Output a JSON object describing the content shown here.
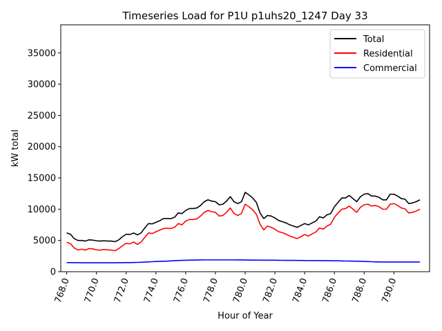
{
  "chart_data": {
    "type": "line",
    "title": "Timeseries Load for P1U p1uhs20_1247  Day 33",
    "xlabel": "Hour of Year",
    "ylabel": "kW total",
    "xlim": [
      767.6,
      792.4
    ],
    "ylim": [
      0,
      39500
    ],
    "xticks": [
      768.0,
      770.0,
      772.0,
      774.0,
      776.0,
      778.0,
      780.0,
      782.0,
      784.0,
      786.0,
      788.0,
      790.0
    ],
    "xtick_labels": [
      "768.0",
      "770.0",
      "772.0",
      "774.0",
      "776.0",
      "778.0",
      "780.0",
      "782.0",
      "784.0",
      "786.0",
      "788.0",
      "790.0"
    ],
    "yticks": [
      0,
      5000,
      10000,
      15000,
      20000,
      25000,
      30000,
      35000
    ],
    "ytick_labels": [
      "0",
      "5000",
      "10000",
      "15000",
      "20000",
      "25000",
      "30000",
      "35000"
    ],
    "legend_position": "top-right",
    "grid": false,
    "x": [
      768.0,
      768.25,
      768.5,
      768.75,
      769.0,
      769.25,
      769.5,
      769.75,
      770.0,
      770.25,
      770.5,
      770.75,
      771.0,
      771.25,
      771.5,
      771.75,
      772.0,
      772.25,
      772.5,
      772.75,
      773.0,
      773.25,
      773.5,
      773.75,
      774.0,
      774.25,
      774.5,
      774.75,
      775.0,
      775.25,
      775.5,
      775.75,
      776.0,
      776.25,
      776.5,
      776.75,
      777.0,
      777.25,
      777.5,
      777.75,
      778.0,
      778.25,
      778.5,
      778.75,
      779.0,
      779.25,
      779.5,
      779.75,
      780.0,
      780.25,
      780.5,
      780.75,
      781.0,
      781.25,
      781.5,
      781.75,
      782.0,
      782.25,
      782.5,
      782.75,
      783.0,
      783.25,
      783.5,
      783.75,
      784.0,
      784.25,
      784.5,
      784.75,
      785.0,
      785.25,
      785.5,
      785.75,
      786.0,
      786.25,
      786.5,
      786.75,
      787.0,
      787.25,
      787.5,
      787.75,
      788.0,
      788.25,
      788.5,
      788.75,
      789.0,
      789.25,
      789.5,
      789.75,
      790.0,
      790.25,
      790.5,
      790.75,
      791.0,
      791.25,
      791.5,
      791.75
    ],
    "series": [
      {
        "name": "Total",
        "color": "#000000",
        "values": [
          6200,
          6000,
          5300,
          5000,
          5000,
          4900,
          5100,
          5050,
          4950,
          4900,
          4950,
          4900,
          4900,
          4800,
          5100,
          5600,
          6000,
          5950,
          6200,
          5900,
          6200,
          7000,
          7700,
          7650,
          7900,
          8150,
          8500,
          8500,
          8500,
          8700,
          9400,
          9300,
          9800,
          10100,
          10100,
          10200,
          10600,
          11200,
          11500,
          11300,
          11200,
          10700,
          10800,
          11300,
          12000,
          11200,
          10900,
          11200,
          12700,
          12300,
          11800,
          11100,
          9400,
          8500,
          9000,
          8900,
          8600,
          8200,
          8000,
          7800,
          7500,
          7300,
          7100,
          7400,
          7700,
          7500,
          7800,
          8100,
          8800,
          8600,
          9100,
          9300,
          10400,
          11100,
          11800,
          11800,
          12200,
          11700,
          11200,
          12000,
          12400,
          12500,
          12100,
          12100,
          11900,
          11500,
          11500,
          12400,
          12400,
          12100,
          11700,
          11600,
          10900,
          11000,
          11200,
          11500
        ]
      },
      {
        "name": "Residential",
        "color": "#ff0000",
        "values": [
          4700,
          4500,
          3800,
          3500,
          3600,
          3450,
          3700,
          3650,
          3500,
          3450,
          3550,
          3500,
          3450,
          3350,
          3700,
          4150,
          4550,
          4450,
          4750,
          4350,
          4750,
          5500,
          6200,
          6100,
          6400,
          6650,
          6900,
          6950,
          6900,
          7100,
          7700,
          7500,
          8100,
          8350,
          8350,
          8450,
          8900,
          9500,
          9800,
          9600,
          9500,
          8900,
          9000,
          9500,
          10200,
          9300,
          9000,
          9300,
          10800,
          10400,
          9900,
          9200,
          7600,
          6700,
          7300,
          7100,
          6800,
          6400,
          6250,
          6000,
          5700,
          5500,
          5300,
          5600,
          5950,
          5700,
          6050,
          6350,
          7000,
          6800,
          7300,
          7600,
          8700,
          9400,
          10000,
          10100,
          10500,
          10000,
          9500,
          10300,
          10700,
          10800,
          10500,
          10600,
          10400,
          10000,
          10000,
          10800,
          10900,
          10600,
          10200,
          10050,
          9400,
          9500,
          9700,
          10000
        ]
      },
      {
        "name": "Commercial",
        "color": "#0000ff",
        "values": [
          1460,
          1450,
          1440,
          1440,
          1430,
          1430,
          1430,
          1430,
          1430,
          1430,
          1430,
          1430,
          1430,
          1430,
          1440,
          1440,
          1450,
          1460,
          1470,
          1490,
          1510,
          1540,
          1570,
          1600,
          1630,
          1650,
          1670,
          1690,
          1730,
          1760,
          1790,
          1810,
          1830,
          1850,
          1860,
          1870,
          1880,
          1890,
          1890,
          1890,
          1890,
          1890,
          1890,
          1890,
          1890,
          1890,
          1880,
          1880,
          1870,
          1870,
          1860,
          1850,
          1840,
          1840,
          1840,
          1840,
          1840,
          1830,
          1820,
          1810,
          1810,
          1810,
          1800,
          1800,
          1790,
          1780,
          1770,
          1770,
          1770,
          1770,
          1760,
          1760,
          1750,
          1740,
          1720,
          1710,
          1700,
          1690,
          1680,
          1660,
          1640,
          1620,
          1600,
          1570,
          1560,
          1550,
          1550,
          1550,
          1550,
          1550,
          1550,
          1550,
          1550,
          1550,
          1550,
          1550
        ]
      }
    ]
  }
}
